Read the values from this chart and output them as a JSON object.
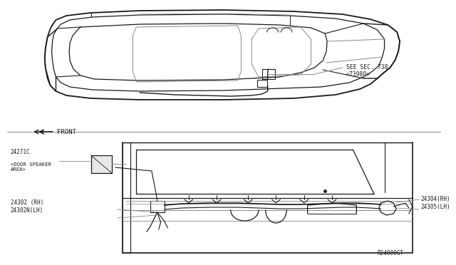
{
  "background_color": "#ffffff",
  "line_color": "#1a1a1a",
  "gray_color": "#888888",
  "light_gray": "#cccccc",
  "fig_width": 6.4,
  "fig_height": 3.72,
  "dpi": 100,
  "text_sec": "SEE SEC. 738\n<73980>",
  "text_front": "FRONT",
  "text_24271c": "24271C",
  "text_door_speaker": "<DOOR SPEAKER\nAREA>",
  "text_24302": "24302 (RH)\n24302N(LH)",
  "text_24304": "24304(RH)\n24305(LH)",
  "text_ref": "R24000GT"
}
